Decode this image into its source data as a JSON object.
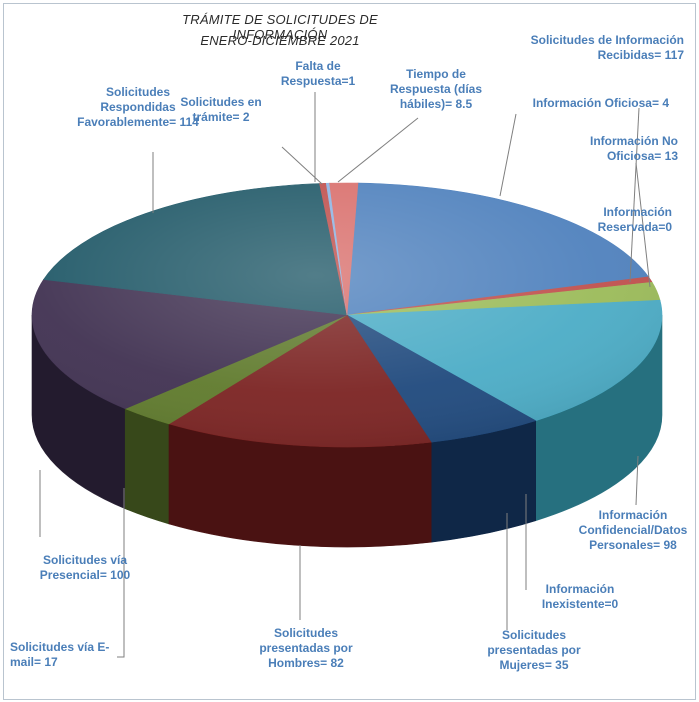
{
  "chart_data": {
    "type": "pie",
    "title": "TRÁMITE DE SOLICITUDES DE INFORMACIÓN",
    "subtitle": "ENERO-DICIEMBRE 2021",
    "slices": [
      {
        "label": "Solicitudes de Información\nRecibidas= 117",
        "value": 117,
        "color": "#4f81bd",
        "dark": "#2f5383"
      },
      {
        "label": "Información Oficiosa= 4",
        "value": 4,
        "color": "#c0504d",
        "dark": "#7e2d2b"
      },
      {
        "label": "Información No\nOficiosa= 13",
        "value": 13,
        "color": "#9bbb59",
        "dark": "#5f7a2c"
      },
      {
        "label": "Información\nReservada=0",
        "value": 0,
        "color": "#8064a2",
        "dark": "#4e3b66"
      },
      {
        "label": "Información\nConfidencial/Datos\nPersonales= 98",
        "value": 98,
        "color": "#4bacc6",
        "dark": "#26707f"
      },
      {
        "label": "Información\nInexistente=0",
        "value": 0,
        "color": "#f79646",
        "dark": "#b25e1a"
      },
      {
        "label": "Solicitudes\npresentadas por\nMujeres= 35",
        "value": 35,
        "color": "#1f497d",
        "dark": "#0f2747"
      },
      {
        "label": "Solicitudes\npresentadas por\nHombres= 82",
        "value": 82,
        "color": "#7b2322",
        "dark": "#4a1212"
      },
      {
        "label": "Solicitudes vía E-\nmail= 17",
        "value": 17,
        "color": "#5f7a2c",
        "dark": "#37481a"
      },
      {
        "label": "Solicitudes vía\nPresencial= 100",
        "value": 100,
        "color": "#403151",
        "dark": "#231b2e"
      },
      {
        "label": "Solicitudes\nRespondidas\nFavorablemente= 114",
        "value": 114,
        "color": "#215968",
        "dark": "#10313a"
      },
      {
        "label": "Solicitudes en\ntrámite= 2",
        "value": 2,
        "color": "#c0504d",
        "dark": "#7e2d2b"
      },
      {
        "label": "Falta de\nRespuesta=1",
        "value": 1,
        "color": "#8db3e2",
        "dark": "#5a7fae"
      },
      {
        "label": "Tiempo de\nRespuesta (días\nhábiles)= 8.5",
        "value": 8.5,
        "color": "#d96f6c",
        "dark": "#9c3e3b"
      }
    ]
  }
}
